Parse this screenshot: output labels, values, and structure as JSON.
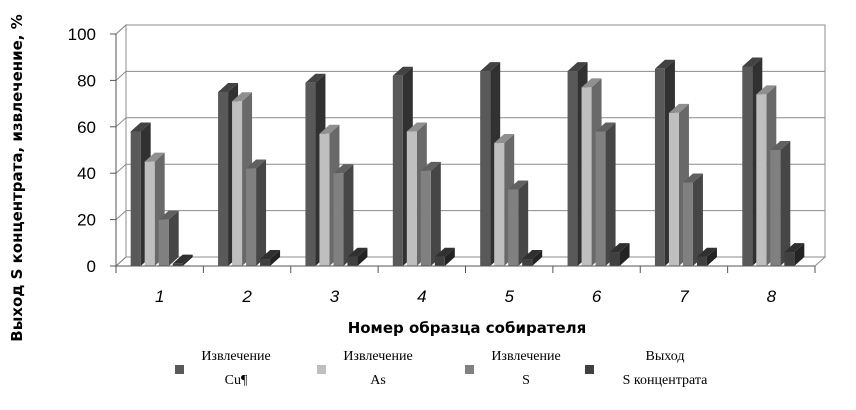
{
  "chart_data": {
    "type": "bar",
    "title": "",
    "xlabel": "Номер образца собирателя",
    "ylabel": "Выход S концентрата, извлечение, %",
    "ylim": [
      0,
      100
    ],
    "yticks": [
      0,
      20,
      40,
      60,
      80,
      100
    ],
    "grid": true,
    "legend_position": "bottom",
    "categories": [
      "1",
      "2",
      "3",
      "4",
      "5",
      "6",
      "7",
      "8"
    ],
    "series": [
      {
        "name_lines": [
          "Извлечение",
          "Cu¶"
        ],
        "color": "#595959",
        "values": [
          58,
          75,
          79,
          82,
          84,
          84,
          85,
          86
        ]
      },
      {
        "name_lines": [
          "Извлечение",
          "As"
        ],
        "color": "#bfbfbf",
        "values": [
          45,
          71,
          57,
          58,
          53,
          77,
          66,
          74
        ]
      },
      {
        "name_lines": [
          "Извлечение",
          "S"
        ],
        "color": "#808080",
        "values": [
          20,
          42,
          40,
          41,
          33,
          58,
          36,
          50
        ]
      },
      {
        "name_lines": [
          "Выход",
          "S концентрата"
        ],
        "color": "#404040",
        "values": [
          1,
          3,
          4,
          4,
          3,
          6,
          4,
          6
        ]
      }
    ]
  }
}
